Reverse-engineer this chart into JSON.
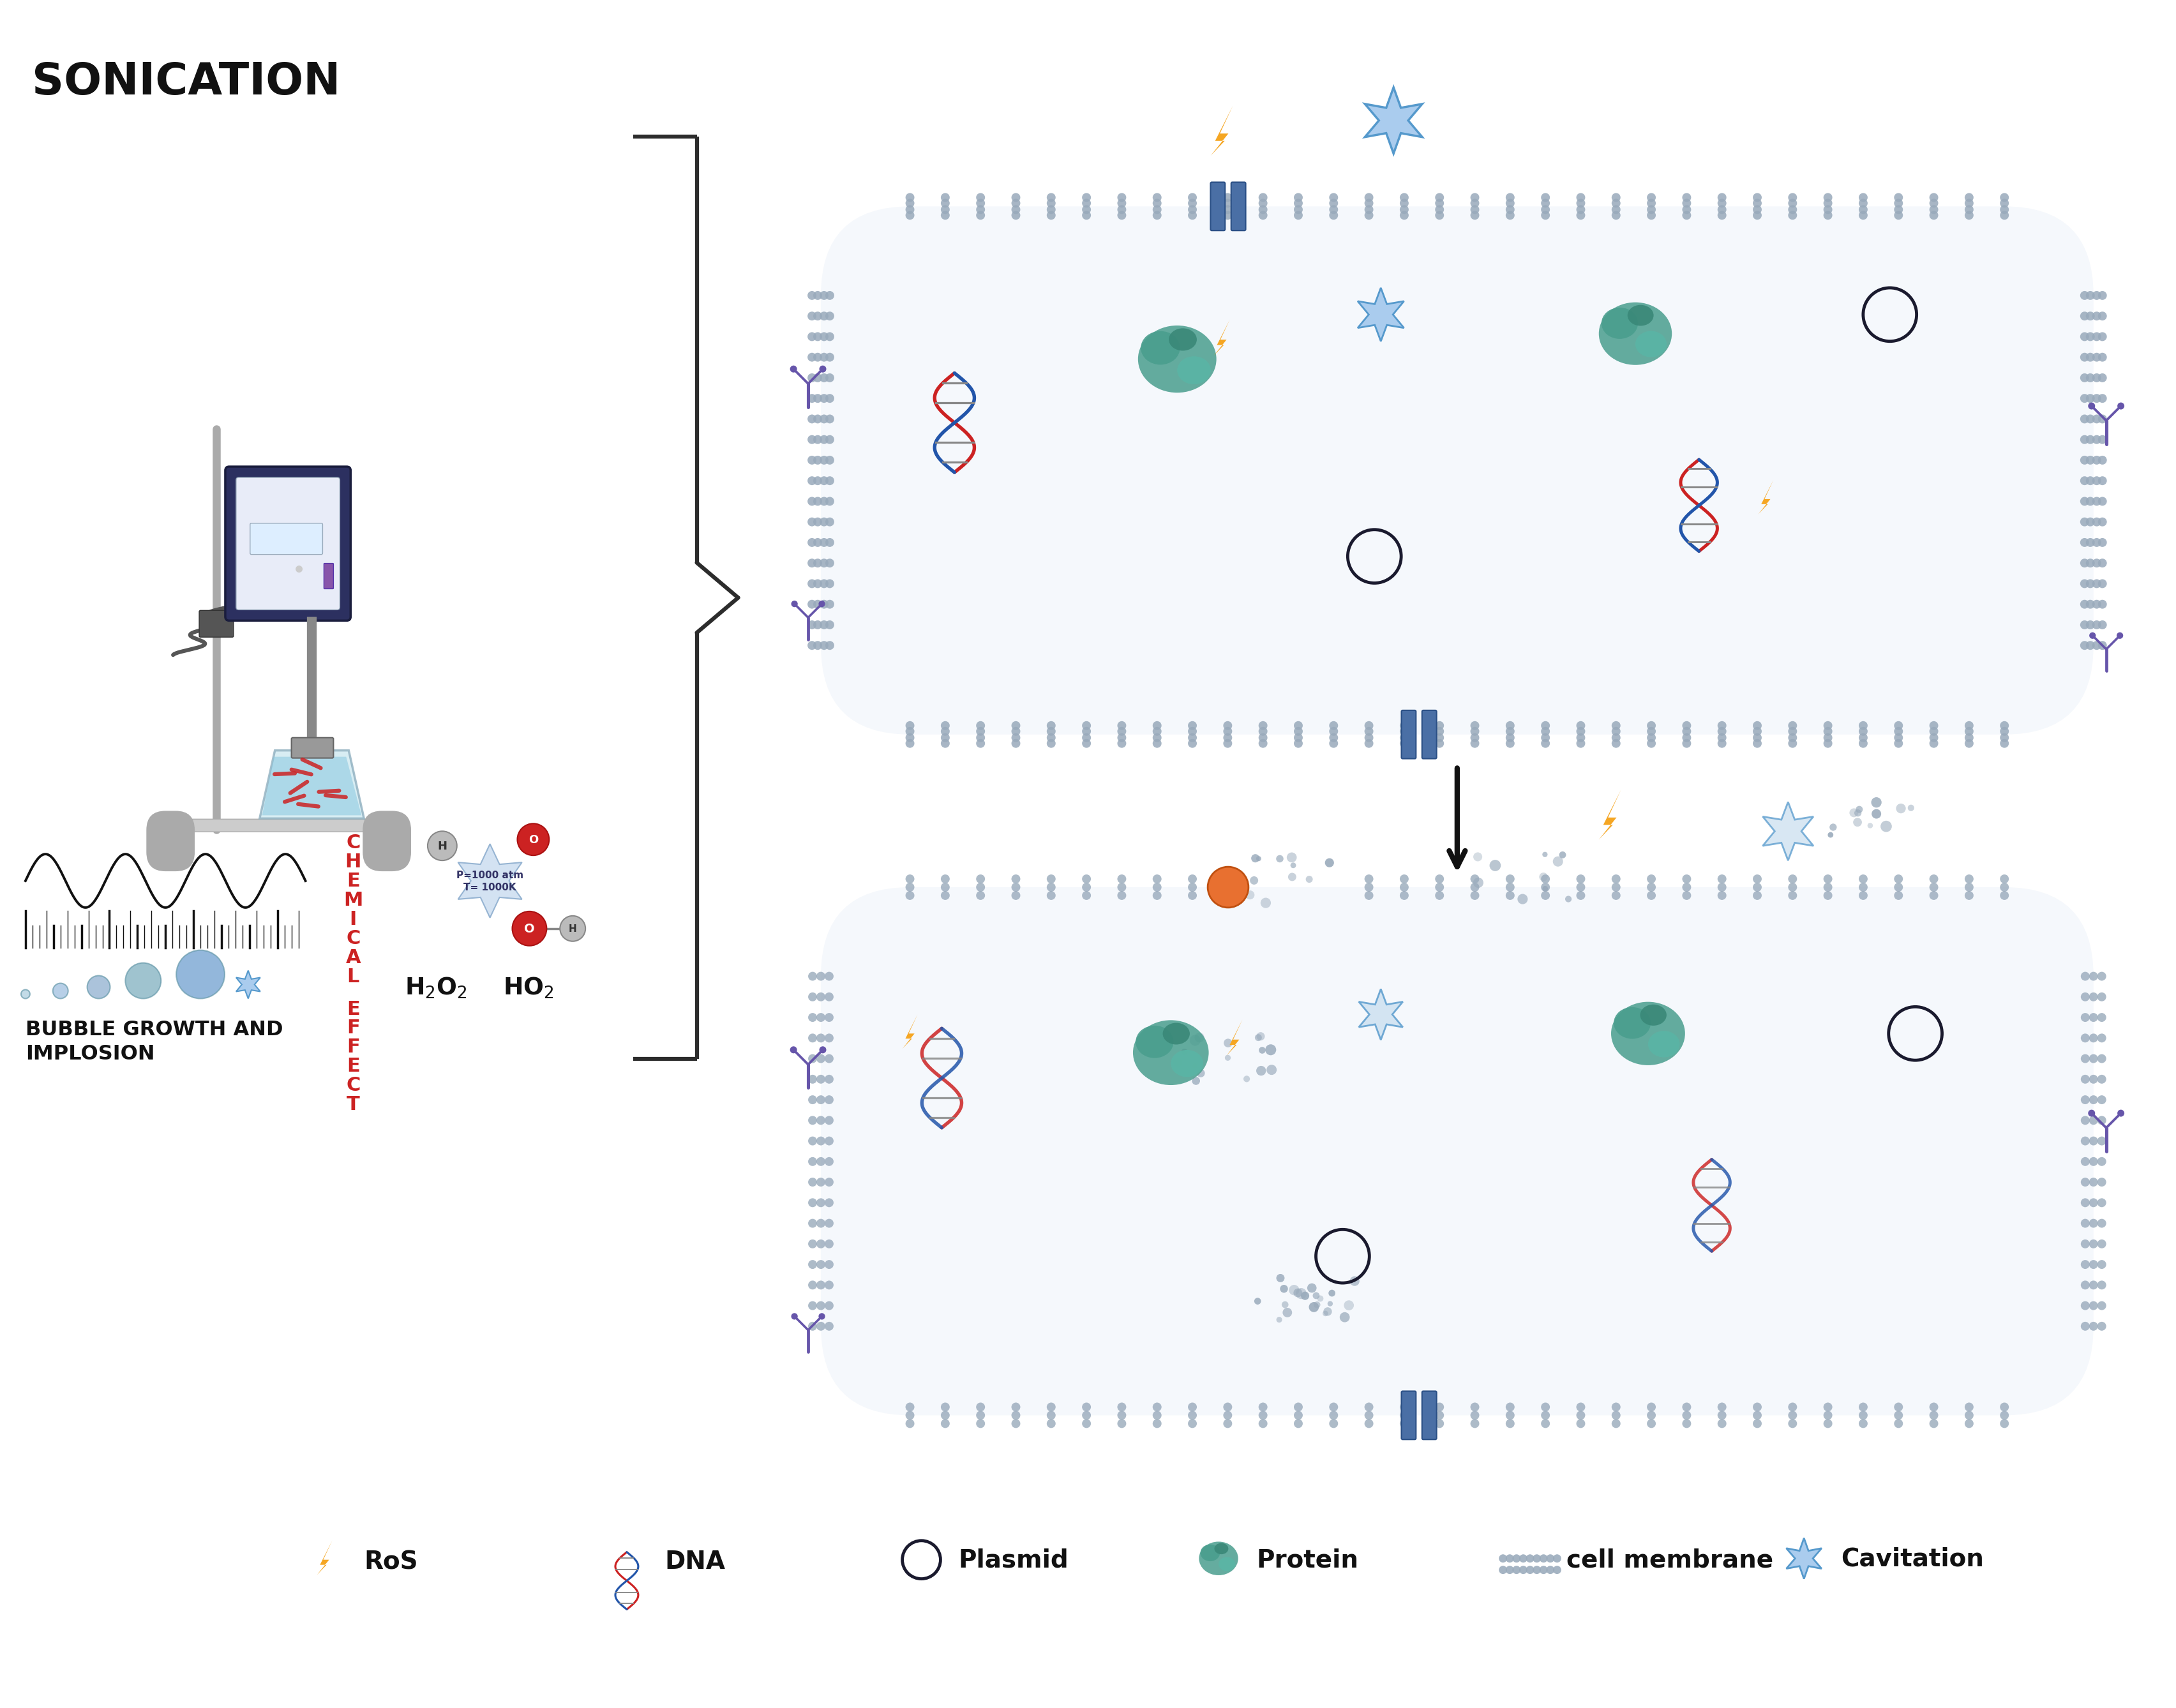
{
  "background_color": "#ffffff",
  "sonication_label": "SONICATION",
  "bubble_label": "BUBBLE GROWTH AND\nIMPLOSION",
  "ros_color": "#f5a623",
  "dna_color1": "#cc2222",
  "dna_color2": "#2255aa",
  "protein_color": "#4a9e8e",
  "plasmid_color": "#1a1a2e",
  "antibody_color": "#6655aa",
  "channel_color": "#4a6fa5",
  "star_color": "#5599cc",
  "star_fill": "#aaccee",
  "chemical_text_color": "#cc2222",
  "dot_color": "#99aabb",
  "bracket_color": "#2c2c2c",
  "legend_items": [
    "RoS",
    "DNA",
    "Plasmid",
    "Protein",
    "cell membrane",
    "Cavitation"
  ]
}
